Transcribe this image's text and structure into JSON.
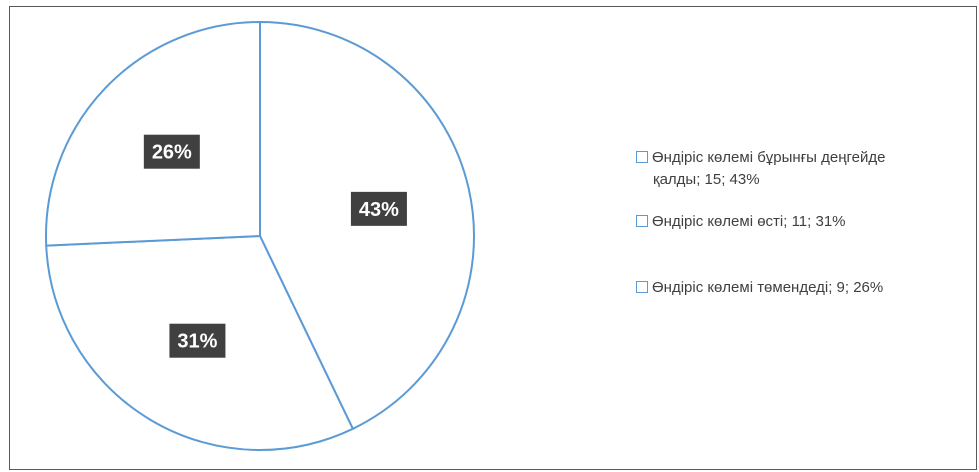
{
  "chart_data": {
    "type": "pie",
    "start_angle_deg": 0,
    "direction": "clockwise",
    "slice_fill": "#ffffff",
    "slice_stroke": "#5b9bd5",
    "label_bg": "#404040",
    "label_color": "#ffffff",
    "legend_position": "right",
    "slices": [
      {
        "label": "Өндіріс көлемі бұрынғы деңгейде қалды",
        "value": 15,
        "percent": "43%",
        "legend_line1": "Өндіріс көлемі бұрынғы деңгейде",
        "legend_line2": "қалды; 15; 43%"
      },
      {
        "label": "Өндіріс көлемі өсті",
        "value": 11,
        "percent": "31%",
        "legend_line1": "Өндіріс көлемі өсті;  11; 31%",
        "legend_line2": ""
      },
      {
        "label": "Өндіріс көлемі төмендеді",
        "value": 9,
        "percent": "26%",
        "legend_line1": "Өндіріс көлемі төмендеді; 9; 26%",
        "legend_line2": ""
      }
    ]
  }
}
